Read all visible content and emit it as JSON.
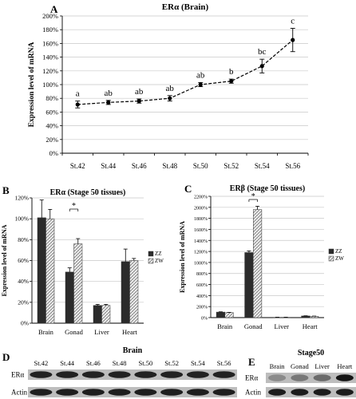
{
  "chart_data": [
    {
      "panel": "A",
      "type": "line",
      "title": "ERα (Brain)",
      "xlabel": "",
      "ylabel": "Expression level of mRNA",
      "categories": [
        "St.42",
        "St.44",
        "St.46",
        "St.48",
        "St.50",
        "St.52",
        "St.54",
        "St.56"
      ],
      "values": [
        71,
        74,
        76,
        80,
        100,
        105,
        127,
        165
      ],
      "errors": [
        5,
        3,
        3,
        4,
        3,
        3,
        10,
        17
      ],
      "letters": [
        "a",
        "ab",
        "ab",
        "ab",
        "ab",
        "b",
        "bc",
        "c"
      ],
      "ylim": [
        0,
        200
      ],
      "yticks": [
        "0%",
        "20%",
        "40%",
        "60%",
        "80%",
        "100%",
        "120%",
        "140%",
        "160%",
        "180%",
        "200%"
      ],
      "grid": true
    },
    {
      "panel": "B",
      "type": "bar",
      "title": "ERα (Stage 50 tissues)",
      "ylabel": "Expression level of mRNA",
      "categories": [
        "Brain",
        "Gonad",
        "Liver",
        "Heart"
      ],
      "series": [
        {
          "name": "ZZ",
          "values": [
            101,
            49,
            17,
            59
          ],
          "errors": [
            17,
            4,
            1,
            12
          ]
        },
        {
          "name": "ZW",
          "values": [
            100,
            76,
            17,
            60
          ],
          "errors": [
            9,
            5,
            1,
            2
          ]
        }
      ],
      "annotation": "*",
      "ylim": [
        0,
        120
      ],
      "yticks": [
        "0%",
        "20%",
        "40%",
        "60%",
        "80%",
        "100%",
        "120%"
      ],
      "grid": true,
      "legend": "right"
    },
    {
      "panel": "C",
      "type": "bar",
      "title": "ERβ (Stage 50 tissues)",
      "ylabel": "Expression level of mRNA",
      "categories": [
        "Brain",
        "Gonad",
        "Liver",
        "Heart"
      ],
      "series": [
        {
          "name": "ZZ",
          "values": [
            100,
            1180,
            5,
            30
          ],
          "errors": [
            5,
            30,
            2,
            3
          ]
        },
        {
          "name": "ZW",
          "values": [
            90,
            1960,
            5,
            25
          ],
          "errors": [
            5,
            60,
            2,
            3
          ]
        }
      ],
      "annotation": "*",
      "ylim": [
        0,
        2200
      ],
      "yticks": [
        "0%",
        "200%",
        "400%",
        "600%",
        "800%",
        "1000%",
        "1200%",
        "1400%",
        "1600%",
        "1800%",
        "2000%",
        "2200%"
      ],
      "grid": true,
      "legend": "right"
    }
  ],
  "blots": {
    "D": {
      "panel": "D",
      "title": "Brain",
      "lanes": [
        "St.42",
        "St.44",
        "St.46",
        "St.48",
        "St.50",
        "St.52",
        "St.54",
        "St.56"
      ],
      "rows": [
        "ERα",
        "Actin"
      ]
    },
    "E": {
      "panel": "E",
      "title": "Stage50",
      "lanes": [
        "Brain",
        "Gonad",
        "Liver",
        "Heart"
      ],
      "rows": [
        "ERα",
        "Actin"
      ]
    }
  }
}
